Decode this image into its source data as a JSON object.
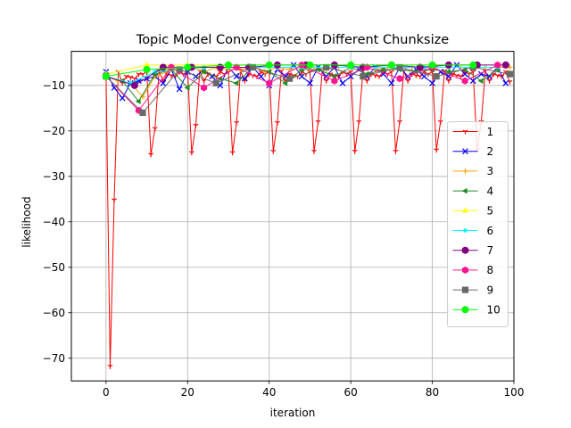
{
  "chart_data": {
    "type": "line",
    "title": "Topic Model Convergence of Different Chunksize",
    "xlabel": "iteration",
    "ylabel": "likelihood",
    "xlim": [
      -8.5,
      100
    ],
    "ylim": [
      -75,
      -2.5
    ],
    "xticks": [
      0,
      20,
      40,
      60,
      80,
      100
    ],
    "yticks": [
      -70,
      -60,
      -50,
      -40,
      -30,
      -20,
      -10
    ],
    "xtick_labels": [
      "0",
      "20",
      "40",
      "60",
      "80",
      "100"
    ],
    "ytick_labels": [
      "−70",
      "−60",
      "−50",
      "−40",
      "−30",
      "−20",
      "−10"
    ],
    "grid": true,
    "legend_position": "center-right",
    "series": [
      {
        "name": "1",
        "color": "#ff0000",
        "marker": "tri_down",
        "x": [
          0,
          1,
          2,
          3,
          4,
          5,
          6,
          7,
          8,
          9,
          10,
          11,
          12,
          13,
          14,
          15,
          16,
          17,
          18,
          19,
          20,
          21,
          22,
          23,
          24,
          25,
          26,
          27,
          28,
          29,
          30,
          31,
          32,
          33,
          34,
          35,
          36,
          37,
          38,
          39,
          40,
          41,
          42,
          43,
          44,
          45,
          46,
          47,
          48,
          49,
          50,
          51,
          52,
          53,
          54,
          55,
          56,
          57,
          58,
          59,
          60,
          61,
          62,
          63,
          64,
          65,
          66,
          67,
          68,
          69,
          70,
          71,
          72,
          73,
          74,
          75,
          76,
          77,
          78,
          79,
          80,
          81,
          82,
          83,
          84,
          85,
          86,
          87,
          88,
          89,
          90,
          91,
          92,
          93,
          94,
          95,
          96,
          97,
          98,
          99
        ],
        "y": [
          -7.5,
          -71.8,
          -35.2,
          -7.0,
          -9.5,
          -8.0,
          -8.2,
          -8.5,
          -7.5,
          -7.5,
          -7.0,
          -25.2,
          -19.5,
          -6.8,
          -9.0,
          -7.5,
          -7.8,
          -8.0,
          -7.0,
          -7.5,
          -7.0,
          -24.8,
          -18.8,
          -6.8,
          -9.0,
          -7.5,
          -7.8,
          -8.0,
          -7.0,
          -7.5,
          -7.0,
          -24.8,
          -18.2,
          -6.8,
          -9.0,
          -7.5,
          -7.8,
          -8.0,
          -7.0,
          -7.5,
          -7.0,
          -24.5,
          -18.2,
          -6.8,
          -9.0,
          -7.5,
          -7.8,
          -8.0,
          -7.0,
          -7.5,
          -7.0,
          -24.5,
          -18.0,
          -6.8,
          -9.0,
          -7.5,
          -7.8,
          -8.0,
          -7.0,
          -7.5,
          -7.0,
          -24.5,
          -18.0,
          -6.8,
          -9.0,
          -7.5,
          -7.8,
          -8.0,
          -7.0,
          -7.5,
          -7.0,
          -24.5,
          -18.0,
          -6.8,
          -9.0,
          -7.5,
          -7.8,
          -8.0,
          -7.0,
          -7.5,
          -7.0,
          -24.2,
          -18.0,
          -6.8,
          -9.0,
          -7.5,
          -7.8,
          -8.0,
          -7.0,
          -7.5,
          -7.0,
          -24.2,
          -18.0,
          -6.8,
          -9.0,
          -7.5,
          -7.8,
          -8.0,
          -7.0,
          -9.2
        ]
      },
      {
        "name": "2",
        "color": "#0000ff",
        "marker": "x",
        "x": [
          0,
          2,
          4,
          6,
          8,
          10,
          12,
          14,
          16,
          18,
          20,
          22,
          24,
          26,
          28,
          30,
          32,
          34,
          36,
          38,
          40,
          42,
          44,
          46,
          48,
          50,
          52,
          54,
          56,
          58,
          60,
          62,
          64,
          66,
          68,
          70,
          72,
          74,
          76,
          78,
          80,
          82,
          84,
          86,
          88,
          90,
          92,
          94,
          96,
          98
        ],
        "y": [
          -7.0,
          -10.5,
          -12.8,
          -9.5,
          -9.0,
          -8.5,
          -8.0,
          -9.5,
          -6.5,
          -10.8,
          -7.0,
          -8.0,
          -6.5,
          -8.0,
          -10.0,
          -6.0,
          -8.0,
          -8.5,
          -6.0,
          -8.0,
          -10.0,
          -6.5,
          -8.0,
          -5.5,
          -8.0,
          -9.5,
          -6.0,
          -8.0,
          -6.0,
          -9.5,
          -8.0,
          -6.5,
          -8.0,
          -6.0,
          -7.5,
          -9.5,
          -6.0,
          -8.0,
          -6.5,
          -8.0,
          -9.5,
          -7.0,
          -8.0,
          -5.5,
          -7.5,
          -9.0,
          -7.5,
          -8.0,
          -6.0,
          -9.5
        ]
      },
      {
        "name": "3",
        "color": "#ffa500",
        "marker": "plus",
        "x": [
          0,
          3,
          6,
          9,
          12,
          15,
          18,
          21,
          24,
          27,
          30,
          33,
          36,
          39,
          42,
          45,
          48,
          51,
          54,
          57,
          60,
          63,
          66,
          69,
          72,
          75,
          78,
          81,
          84,
          87,
          90,
          93,
          96,
          99
        ],
        "y": [
          -8.0,
          -9.0,
          -9.5,
          -12.5,
          -8.0,
          -7.0,
          -6.5,
          -6.0,
          -7.0,
          -6.0,
          -6.5,
          -6.5,
          -6.0,
          -7.0,
          -6.0,
          -6.5,
          -6.0,
          -6.0,
          -6.5,
          -6.0,
          -6.0,
          -6.0,
          -6.5,
          -6.0,
          -6.0,
          -6.0,
          -6.0,
          -6.0,
          -6.0,
          -6.0,
          -6.0,
          -6.0,
          -6.0,
          -6.0
        ]
      },
      {
        "name": "4",
        "color": "#228b22",
        "marker": "tri_left",
        "x": [
          0,
          4,
          8,
          12,
          16,
          20,
          24,
          28,
          32,
          36,
          40,
          44,
          48,
          52,
          56,
          60,
          64,
          68,
          72,
          76,
          80,
          84,
          88,
          92,
          96
        ],
        "y": [
          -8.0,
          -9.0,
          -13.5,
          -7.5,
          -6.5,
          -10.5,
          -7.0,
          -8.5,
          -9.5,
          -6.0,
          -7.0,
          -9.5,
          -6.5,
          -6.5,
          -8.0,
          -6.0,
          -7.5,
          -6.5,
          -6.5,
          -7.0,
          -6.5,
          -7.0,
          -6.5,
          -9.0,
          -6.5
        ]
      },
      {
        "name": "5",
        "color": "#ffff00",
        "marker": "triangle_up",
        "x": [
          0,
          10,
          20,
          30,
          40,
          50,
          60,
          70,
          80,
          90
        ],
        "y": [
          -7.5,
          -5.5,
          -5.5,
          -5.5,
          -5.5,
          -5.5,
          -5.5,
          -5.5,
          -5.5,
          -5.5
        ]
      },
      {
        "name": "6",
        "color": "#00ffff",
        "marker": "dot",
        "x": [
          0,
          6,
          12,
          18,
          24,
          30,
          36,
          42,
          48,
          54,
          60,
          66,
          72,
          78,
          84,
          90,
          96
        ],
        "y": [
          -8.0,
          -9.5,
          -7.0,
          -6.5,
          -6.0,
          -6.0,
          -6.0,
          -6.0,
          -6.0,
          -6.0,
          -6.0,
          -6.0,
          -6.0,
          -6.0,
          -6.0,
          -6.0,
          -6.0
        ]
      },
      {
        "name": "7",
        "color": "#800080",
        "marker": "circle",
        "x": [
          0,
          7,
          14,
          21,
          28,
          35,
          42,
          49,
          56,
          63,
          70,
          77,
          84,
          91,
          98
        ],
        "y": [
          -8.0,
          -10.0,
          -6.0,
          -6.0,
          -6.0,
          -6.0,
          -5.5,
          -5.5,
          -5.5,
          -6.0,
          -5.5,
          -6.0,
          -5.5,
          -5.5,
          -5.5
        ]
      },
      {
        "name": "8",
        "color": "#ff1493",
        "marker": "hexagon",
        "x": [
          0,
          8,
          16,
          24,
          32,
          40,
          48,
          56,
          64,
          72,
          80,
          88,
          96
        ],
        "y": [
          -8.0,
          -15.5,
          -6.0,
          -10.5,
          -6.0,
          -9.5,
          -5.5,
          -9.0,
          -6.0,
          -8.5,
          -6.0,
          -9.0,
          -5.5
        ]
      },
      {
        "name": "9",
        "color": "#696969",
        "marker": "square",
        "x": [
          0,
          9,
          18,
          27,
          36,
          45,
          54,
          63,
          72,
          81,
          90,
          99
        ],
        "y": [
          -8.0,
          -16.0,
          -6.5,
          -9.5,
          -6.0,
          -8.5,
          -6.0,
          -8.0,
          -6.0,
          -8.0,
          -6.0,
          -7.5
        ]
      },
      {
        "name": "10",
        "color": "#00ff00",
        "marker": "circle",
        "x": [
          0,
          10,
          20,
          30,
          40,
          50,
          60,
          70,
          80,
          90
        ],
        "y": [
          -8.0,
          -6.5,
          -6.0,
          -5.5,
          -5.5,
          -5.5,
          -5.5,
          -5.5,
          -5.5,
          -5.5
        ]
      }
    ]
  }
}
